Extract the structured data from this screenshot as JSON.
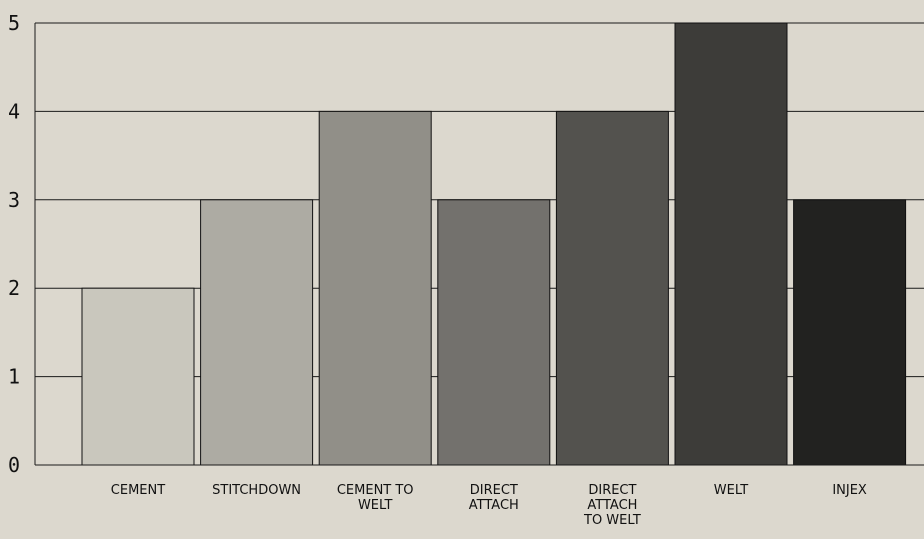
{
  "chart_data": {
    "type": "bar",
    "title": "",
    "xlabel": "",
    "ylabel": "",
    "ylim": [
      0,
      5
    ],
    "yticks": [
      "0",
      "1",
      "2",
      "3",
      "4",
      "5"
    ],
    "grid": true,
    "categories": [
      "CEMENT",
      "STITCHDOWN",
      "CEMENT TO WELT",
      "DIRECT ATTACH",
      "DIRECT ATTACH TO WELT",
      "WELT",
      "INJEX"
    ],
    "category_lines": [
      [
        "CEMENT"
      ],
      [
        "STITCHDOWN"
      ],
      [
        "CEMENT TO",
        "WELT"
      ],
      [
        "DIRECT",
        "ATTACH"
      ],
      [
        "DIRECT",
        "ATTACH",
        "TO WELT"
      ],
      [
        "WELT"
      ],
      [
        "INJEX"
      ]
    ],
    "values": [
      2,
      3,
      4,
      3,
      4,
      5,
      3
    ],
    "colors": [
      "#c9c7bd",
      "#adaba3",
      "#918f88",
      "#73716d",
      "#53524e",
      "#3d3c39",
      "#222220"
    ]
  }
}
